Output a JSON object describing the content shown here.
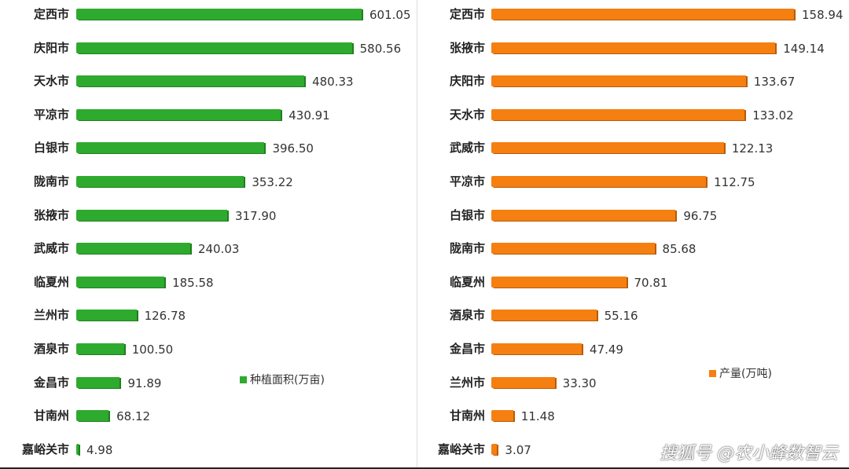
{
  "chart_data": [
    {
      "type": "bar",
      "orientation": "horizontal",
      "categories": [
        "定西市",
        "庆阳市",
        "天水市",
        "平凉市",
        "白银市",
        "陇南市",
        "张掖市",
        "武威市",
        "临夏州",
        "兰州市",
        "酒泉市",
        "金昌市",
        "甘南州",
        "嘉峪关市"
      ],
      "values": [
        601.05,
        580.56,
        480.33,
        430.91,
        396.5,
        353.22,
        317.9,
        240.03,
        185.58,
        126.78,
        100.5,
        91.89,
        68.12,
        4.98
      ],
      "labels": [
        "601.05",
        "580.56",
        "480.33",
        "430.91",
        "396.50",
        "353.22",
        "317.90",
        "240.03",
        "185.58",
        "126.78",
        "100.50",
        "91.89",
        "68.12",
        "4.98"
      ],
      "legend": "种植面积(万亩)",
      "legend_position": "right",
      "color": "#2eaa2e",
      "shade": "#1d7f1d",
      "xlim": [
        0,
        601.05
      ]
    },
    {
      "type": "bar",
      "orientation": "horizontal",
      "categories": [
        "定西市",
        "张掖市",
        "庆阳市",
        "天水市",
        "武威市",
        "平凉市",
        "白银市",
        "陇南市",
        "临夏州",
        "酒泉市",
        "金昌市",
        "兰州市",
        "甘南州",
        "嘉峪关市"
      ],
      "values": [
        158.94,
        149.14,
        133.67,
        133.02,
        122.13,
        112.75,
        96.75,
        85.68,
        70.81,
        55.16,
        47.49,
        33.3,
        11.48,
        3.07
      ],
      "labels": [
        "158.94",
        "149.14",
        "133.67",
        "133.02",
        "122.13",
        "112.75",
        "96.75",
        "85.68",
        "70.81",
        "55.16",
        "47.49",
        "33.30",
        "11.48",
        "3.07"
      ],
      "legend": "产量(万吨)",
      "legend_position": "right",
      "color": "#f57f10",
      "shade": "#b85a05",
      "xlim": [
        0,
        158.94
      ]
    }
  ],
  "watermark": "搜狐号 @农小蜂数智云"
}
